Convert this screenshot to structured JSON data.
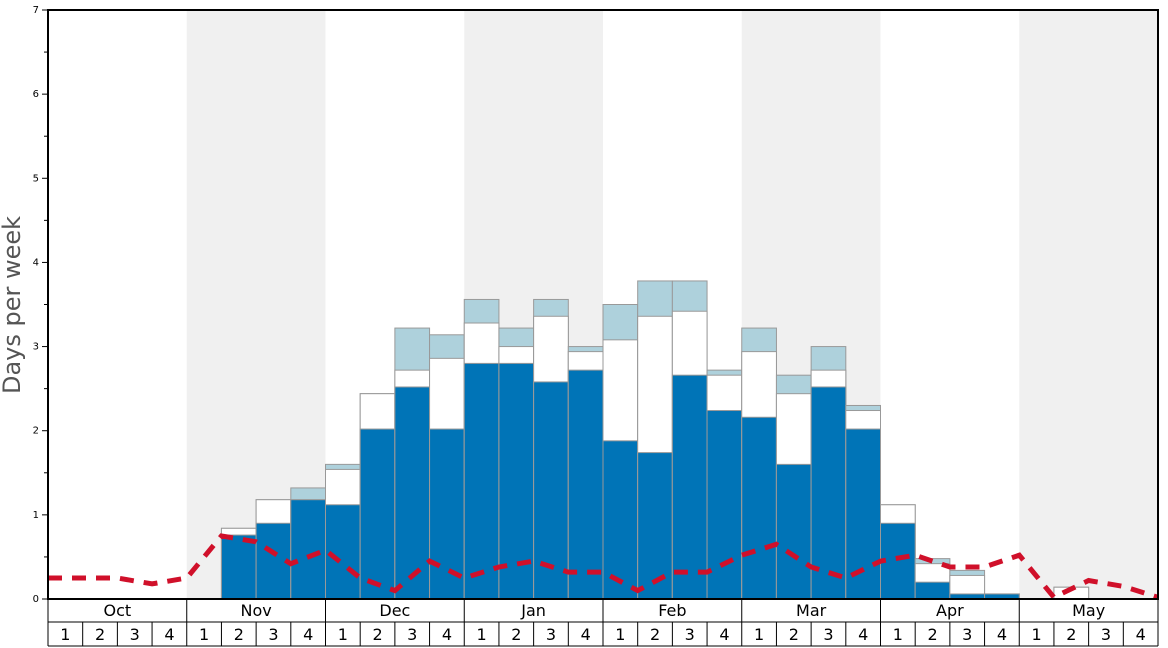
{
  "chart_data": {
    "type": "bar",
    "ylabel": "Days per week",
    "ylim": [
      0,
      7
    ],
    "ytick_labels": [
      "0",
      "1",
      "2",
      "3",
      "4",
      "5",
      "6",
      "7"
    ],
    "months": [
      "Oct",
      "Nov",
      "Dec",
      "Jan",
      "Feb",
      "Mar",
      "Apr",
      "May"
    ],
    "week_labels": [
      "1",
      "2",
      "3",
      "4"
    ],
    "colors": {
      "bottom": "#0074b7",
      "middle": "#ffffff",
      "top": "#aed1dc",
      "line": "#d0102a",
      "band": "#f0f0f0",
      "bar_edge": "#999999"
    },
    "stack_totals": {
      "bottom": [
        0,
        0,
        0,
        0,
        0,
        0.76,
        0.9,
        1.18,
        1.12,
        2.02,
        2.52,
        2.02,
        2.8,
        2.8,
        2.58,
        2.72,
        1.88,
        1.74,
        2.66,
        2.24,
        2.16,
        1.6,
        2.52,
        2.02,
        0.9,
        0.2,
        0.06,
        0.06,
        0,
        0,
        0,
        0
      ],
      "middle": [
        0,
        0,
        0,
        0,
        0,
        0.84,
        1.18,
        1.18,
        1.54,
        2.44,
        2.72,
        2.86,
        3.28,
        3.0,
        3.36,
        2.94,
        3.08,
        3.36,
        3.42,
        2.66,
        2.94,
        2.44,
        2.72,
        2.24,
        1.12,
        0.42,
        0.28,
        0.06,
        0,
        0.14,
        0,
        0
      ],
      "top": [
        0,
        0,
        0,
        0,
        0,
        0.84,
        1.18,
        1.32,
        1.6,
        2.44,
        3.22,
        3.14,
        3.56,
        3.22,
        3.56,
        3.0,
        3.5,
        3.78,
        3.78,
        2.72,
        3.22,
        2.66,
        3.0,
        2.3,
        1.12,
        0.48,
        0.34,
        0.06,
        0,
        0.14,
        0,
        0
      ]
    },
    "line_values": [
      0.25,
      0.25,
      0.25,
      0.18,
      0.25,
      0.75,
      0.68,
      0.42,
      0.58,
      0.25,
      0.1,
      0.45,
      0.25,
      0.38,
      0.45,
      0.32,
      0.32,
      0.1,
      0.32,
      0.32,
      0.52,
      0.65,
      0.38,
      0.25,
      0.45,
      0.52,
      0.38,
      0.38,
      0.52,
      0.02,
      0.22,
      0.15,
      0.02
    ]
  }
}
